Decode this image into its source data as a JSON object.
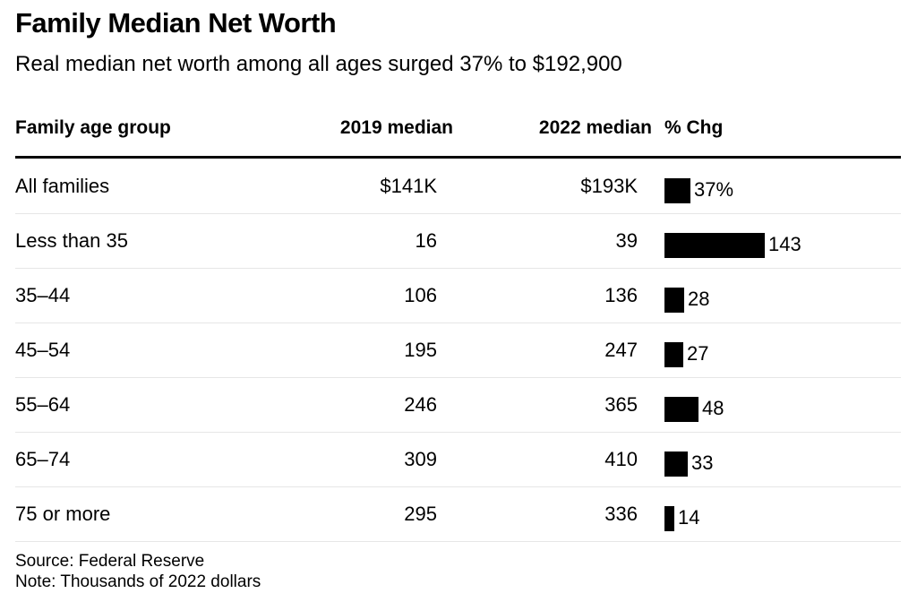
{
  "title": "Family Median Net Worth",
  "subtitle": "Real median net worth among all ages surged 37% to $192,900",
  "headers": {
    "age": "Family age group",
    "y2019": "2019 median",
    "y2022": "2022 median",
    "chg": "% Chg"
  },
  "source": "Source: Federal Reserve",
  "note": "Note: Thousands of 2022 dollars",
  "chart_data": {
    "type": "table",
    "title": "Family Median Net Worth",
    "subtitle": "Real median net worth among all ages surged 37% to $192,900",
    "columns": [
      "Family age group",
      "2019 median",
      "2022 median",
      "% Chg"
    ],
    "rows": [
      {
        "group": "All families",
        "v2019": "$141K",
        "v2022": "$193K",
        "chg": 37,
        "chg_label": "37%"
      },
      {
        "group": "Less than 35",
        "v2019": "16",
        "v2022": "39",
        "chg": 143,
        "chg_label": "143"
      },
      {
        "group": "35–44",
        "v2019": "106",
        "v2022": "136",
        "chg": 28,
        "chg_label": "28"
      },
      {
        "group": "45–54",
        "v2019": "195",
        "v2022": "247",
        "chg": 27,
        "chg_label": "27"
      },
      {
        "group": "55–64",
        "v2019": "246",
        "v2022": "365",
        "chg": 48,
        "chg_label": "48"
      },
      {
        "group": "65–74",
        "v2019": "309",
        "v2022": "410",
        "chg": 33,
        "chg_label": "33"
      },
      {
        "group": "75 or more",
        "v2019": "295",
        "v2022": "336",
        "chg": 14,
        "chg_label": "14"
      }
    ],
    "bar_max": 143
  }
}
